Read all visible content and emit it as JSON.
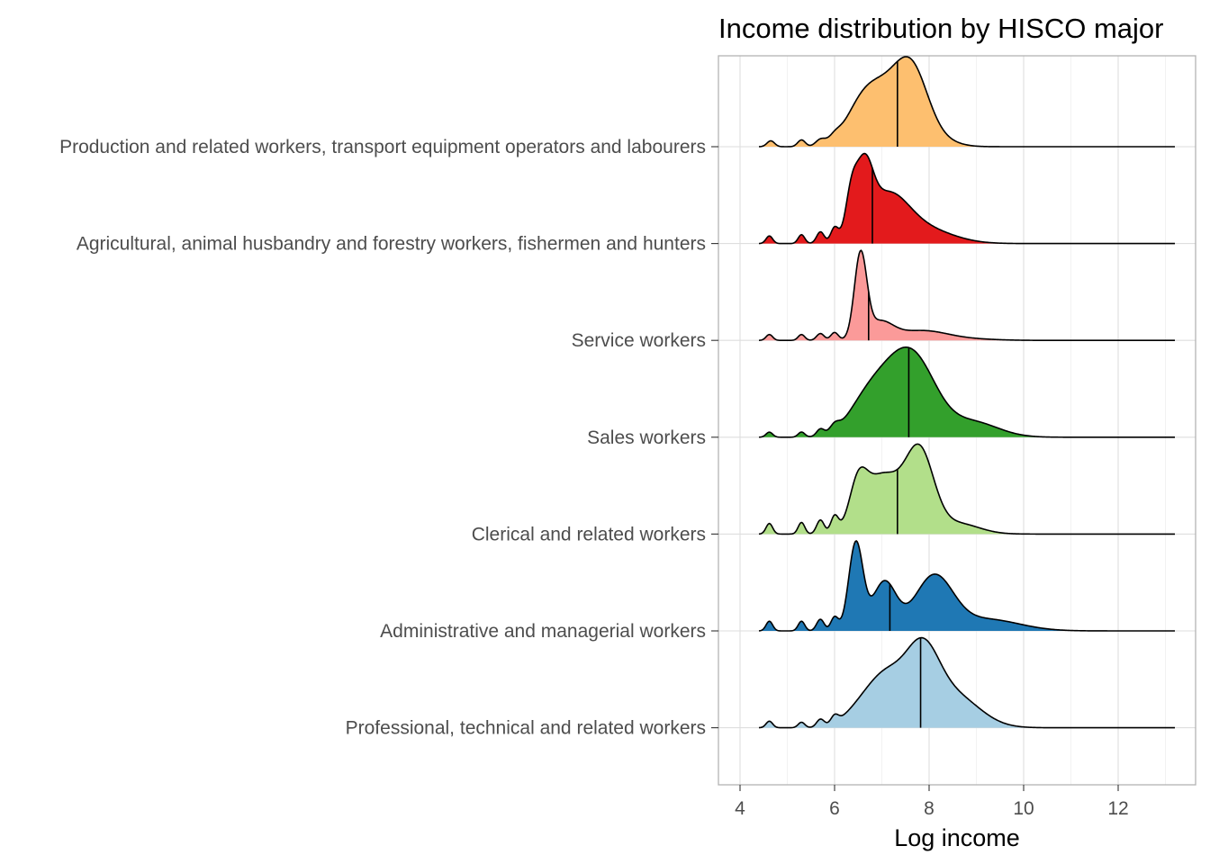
{
  "chart_data": {
    "type": "ridgeline",
    "title": "Income distribution by HISCO major",
    "xlabel": "Log income",
    "ylabel": "",
    "xlim": [
      3.6,
      13.7
    ],
    "xticks": [
      4,
      6,
      8,
      10,
      12
    ],
    "x_range_drawn": [
      4.4,
      13.2
    ],
    "grid": true,
    "legend": "none",
    "series": [
      {
        "name": "Production and related workers, transport equipment operators and labourers",
        "color": "#fdbf6f",
        "median": 7.33,
        "bumps": [
          [
            4.65,
            0.08,
            0.07
          ],
          [
            5.3,
            0.08,
            0.08
          ],
          [
            5.7,
            0.1,
            0.07
          ],
          [
            6.0,
            0.12,
            0.06
          ]
        ],
        "components": [
          [
            6.55,
            0.35,
            0.32
          ],
          [
            7.05,
            0.45,
            0.58
          ],
          [
            7.65,
            0.35,
            0.78
          ],
          [
            8.3,
            0.35,
            0.05
          ]
        ]
      },
      {
        "name": "Agricultural, animal husbandry and forestry workers, fishermen and hunters",
        "color": "#e31a1c",
        "median": 6.8,
        "bumps": [
          [
            4.62,
            0.07,
            0.12
          ],
          [
            5.3,
            0.07,
            0.14
          ],
          [
            5.7,
            0.08,
            0.18
          ],
          [
            6.0,
            0.08,
            0.22
          ]
        ],
        "components": [
          [
            6.35,
            0.12,
            0.55
          ],
          [
            6.62,
            0.18,
            0.95
          ],
          [
            7.1,
            0.45,
            0.72
          ],
          [
            7.9,
            0.6,
            0.22
          ]
        ]
      },
      {
        "name": "Service workers",
        "color": "#fb9a99",
        "median": 6.72,
        "bumps": [
          [
            4.62,
            0.07,
            0.12
          ],
          [
            5.3,
            0.07,
            0.12
          ],
          [
            5.7,
            0.08,
            0.14
          ],
          [
            6.0,
            0.08,
            0.16
          ]
        ],
        "components": [
          [
            6.55,
            0.13,
            1.7
          ],
          [
            6.95,
            0.28,
            0.35
          ],
          [
            7.85,
            0.55,
            0.2
          ],
          [
            9.0,
            0.5,
            0.02
          ]
        ]
      },
      {
        "name": "Sales workers",
        "color": "#33a02c",
        "median": 7.57,
        "bumps": [
          [
            4.62,
            0.07,
            0.06
          ],
          [
            5.3,
            0.07,
            0.06
          ],
          [
            5.7,
            0.08,
            0.08
          ],
          [
            6.0,
            0.1,
            0.08
          ]
        ],
        "components": [
          [
            6.55,
            0.35,
            0.15
          ],
          [
            7.1,
            0.5,
            0.62
          ],
          [
            7.75,
            0.45,
            0.7
          ],
          [
            8.9,
            0.55,
            0.18
          ]
        ]
      },
      {
        "name": "Clerical and related workers",
        "color": "#b2df8a",
        "median": 7.33,
        "bumps": [
          [
            4.62,
            0.07,
            0.1
          ],
          [
            5.3,
            0.07,
            0.11
          ],
          [
            5.7,
            0.08,
            0.13
          ],
          [
            6.0,
            0.08,
            0.15
          ]
        ],
        "components": [
          [
            6.5,
            0.18,
            0.35
          ],
          [
            7.0,
            0.4,
            0.55
          ],
          [
            7.8,
            0.3,
            0.75
          ],
          [
            8.6,
            0.45,
            0.1
          ]
        ]
      },
      {
        "name": "Administrative and managerial workers",
        "color": "#1f78b4",
        "median": 7.17,
        "bumps": [
          [
            4.62,
            0.07,
            0.1
          ],
          [
            5.3,
            0.07,
            0.1
          ],
          [
            5.7,
            0.08,
            0.12
          ],
          [
            6.0,
            0.08,
            0.14
          ]
        ],
        "components": [
          [
            6.45,
            0.15,
            0.9
          ],
          [
            7.05,
            0.25,
            0.5
          ],
          [
            8.1,
            0.4,
            0.55
          ],
          [
            9.2,
            0.7,
            0.12
          ]
        ]
      },
      {
        "name": "Professional, technical and related workers",
        "color": "#a6cee3",
        "median": 7.82,
        "bumps": [
          [
            4.62,
            0.07,
            0.06
          ],
          [
            5.3,
            0.07,
            0.05
          ],
          [
            5.7,
            0.08,
            0.07
          ],
          [
            6.0,
            0.08,
            0.07
          ]
        ],
        "components": [
          [
            6.5,
            0.35,
            0.12
          ],
          [
            7.1,
            0.4,
            0.45
          ],
          [
            7.85,
            0.35,
            0.6
          ],
          [
            8.5,
            0.55,
            0.3
          ]
        ]
      }
    ]
  }
}
